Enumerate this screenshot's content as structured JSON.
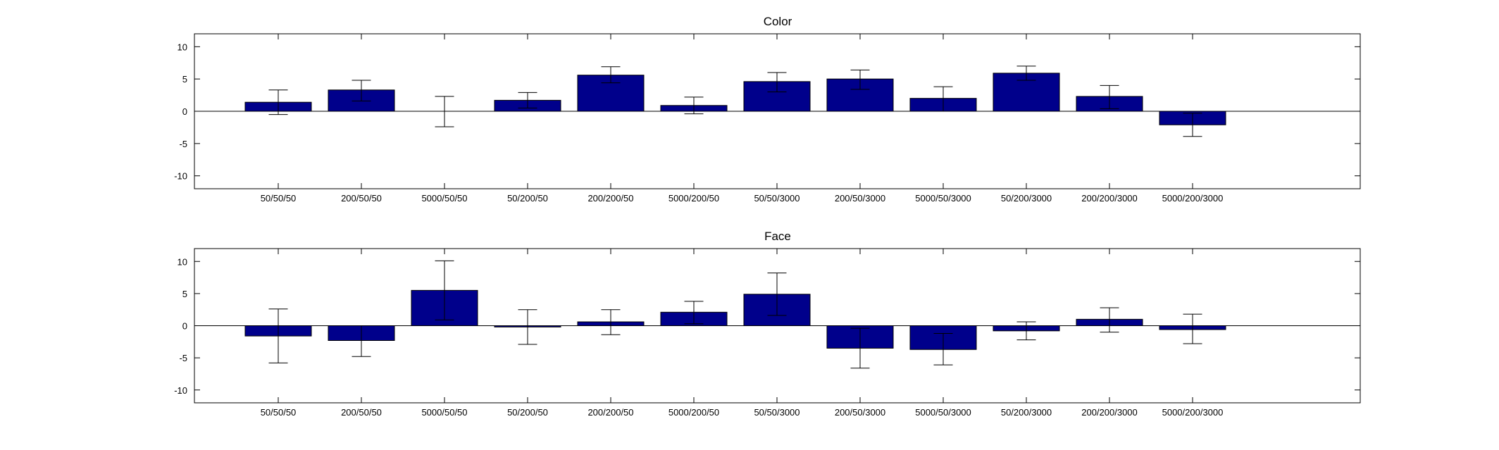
{
  "figure": {
    "background": "#ffffff",
    "bar_color": "#00008B"
  },
  "chart_data": [
    {
      "type": "bar",
      "title": "Color",
      "xlabel": "",
      "ylabel": "",
      "ylim": [
        -12,
        12
      ],
      "yticks": [
        -10,
        -5,
        0,
        5,
        10
      ],
      "categories": [
        "50/50/50",
        "200/50/50",
        "5000/50/50",
        "50/200/50",
        "200/200/50",
        "5000/200/50",
        "50/50/3000",
        "200/50/3000",
        "5000/50/3000",
        "50/200/3000",
        "200/200/3000",
        "5000/200/3000"
      ],
      "values": [
        1.4,
        3.3,
        0.0,
        1.7,
        5.6,
        0.9,
        4.6,
        5.0,
        2.0,
        5.9,
        2.3,
        -2.1
      ],
      "err_low": [
        -0.5,
        1.6,
        -2.4,
        0.5,
        4.4,
        -0.4,
        3.0,
        3.4,
        0.0,
        4.8,
        0.4,
        -3.9
      ],
      "err_high": [
        3.3,
        4.8,
        2.3,
        2.9,
        6.9,
        2.2,
        6.0,
        6.4,
        3.8,
        7.0,
        4.0,
        -0.3
      ]
    },
    {
      "type": "bar",
      "title": "Face",
      "xlabel": "",
      "ylabel": "",
      "ylim": [
        -12,
        12
      ],
      "yticks": [
        -10,
        -5,
        0,
        5,
        10
      ],
      "categories": [
        "50/50/50",
        "200/50/50",
        "5000/50/50",
        "50/200/50",
        "200/200/50",
        "5000/200/50",
        "50/50/3000",
        "200/50/3000",
        "5000/50/3000",
        "50/200/3000",
        "200/200/3000",
        "5000/200/3000"
      ],
      "values": [
        -1.6,
        -2.3,
        5.5,
        -0.2,
        0.6,
        2.1,
        4.9,
        -3.5,
        -3.7,
        -0.8,
        1.0,
        -0.6
      ],
      "err_low": [
        -5.8,
        -4.8,
        0.9,
        -2.9,
        -1.4,
        0.3,
        1.6,
        -6.6,
        -6.1,
        -2.2,
        -1.0,
        -2.8
      ],
      "err_high": [
        2.6,
        0.0,
        10.1,
        2.5,
        2.5,
        3.8,
        8.2,
        -0.4,
        -1.2,
        0.6,
        2.8,
        1.8
      ]
    }
  ]
}
